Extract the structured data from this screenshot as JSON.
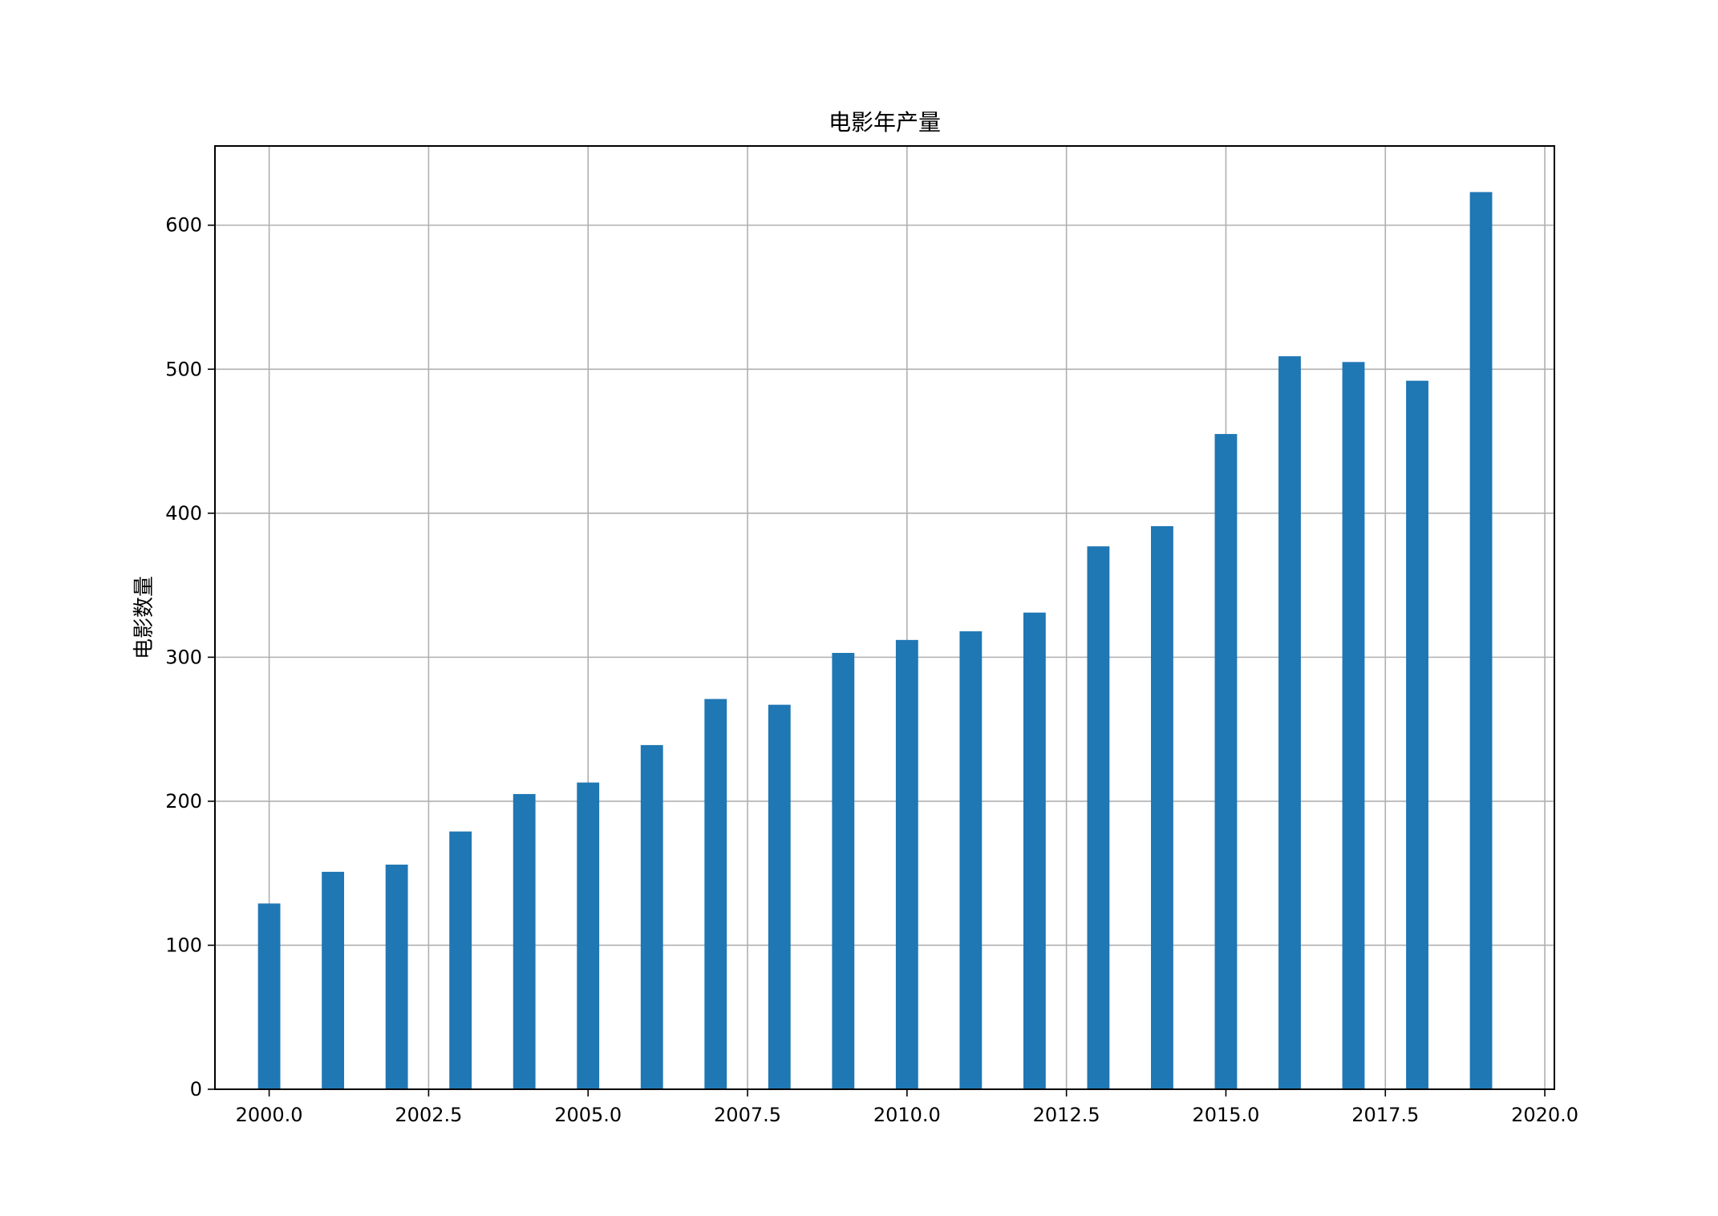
{
  "chart_data": {
    "type": "bar",
    "title": "电影年产量",
    "xlabel": "",
    "ylabel": "电影数量",
    "x": [
      2000,
      2001,
      2002,
      2003,
      2004,
      2005,
      2006,
      2007,
      2008,
      2009,
      2010,
      2011,
      2012,
      2013,
      2014,
      2015,
      2016,
      2017,
      2018,
      2019
    ],
    "values": [
      129,
      151,
      156,
      179,
      205,
      213,
      239,
      271,
      267,
      303,
      312,
      318,
      331,
      377,
      391,
      455,
      509,
      505,
      492,
      623
    ],
    "bar_width": 0.35,
    "xlim": [
      1999.15,
      2020.15
    ],
    "ylim": [
      0,
      655
    ],
    "xticks": [
      2000,
      2002.5,
      2005,
      2007.5,
      2010,
      2012.5,
      2015,
      2017.5,
      2020
    ],
    "xtick_labels": [
      "2000.0",
      "2002.5",
      "2005.0",
      "2007.5",
      "2010.0",
      "2012.5",
      "2015.0",
      "2017.5",
      "2020.0"
    ],
    "yticks": [
      0,
      100,
      200,
      300,
      400,
      500,
      600
    ],
    "ytick_labels": [
      "0",
      "100",
      "200",
      "300",
      "400",
      "500",
      "600"
    ],
    "grid": true,
    "colors": {
      "bar": "#1f77b4",
      "grid": "#b0b0b0",
      "axes": "#000000"
    }
  }
}
